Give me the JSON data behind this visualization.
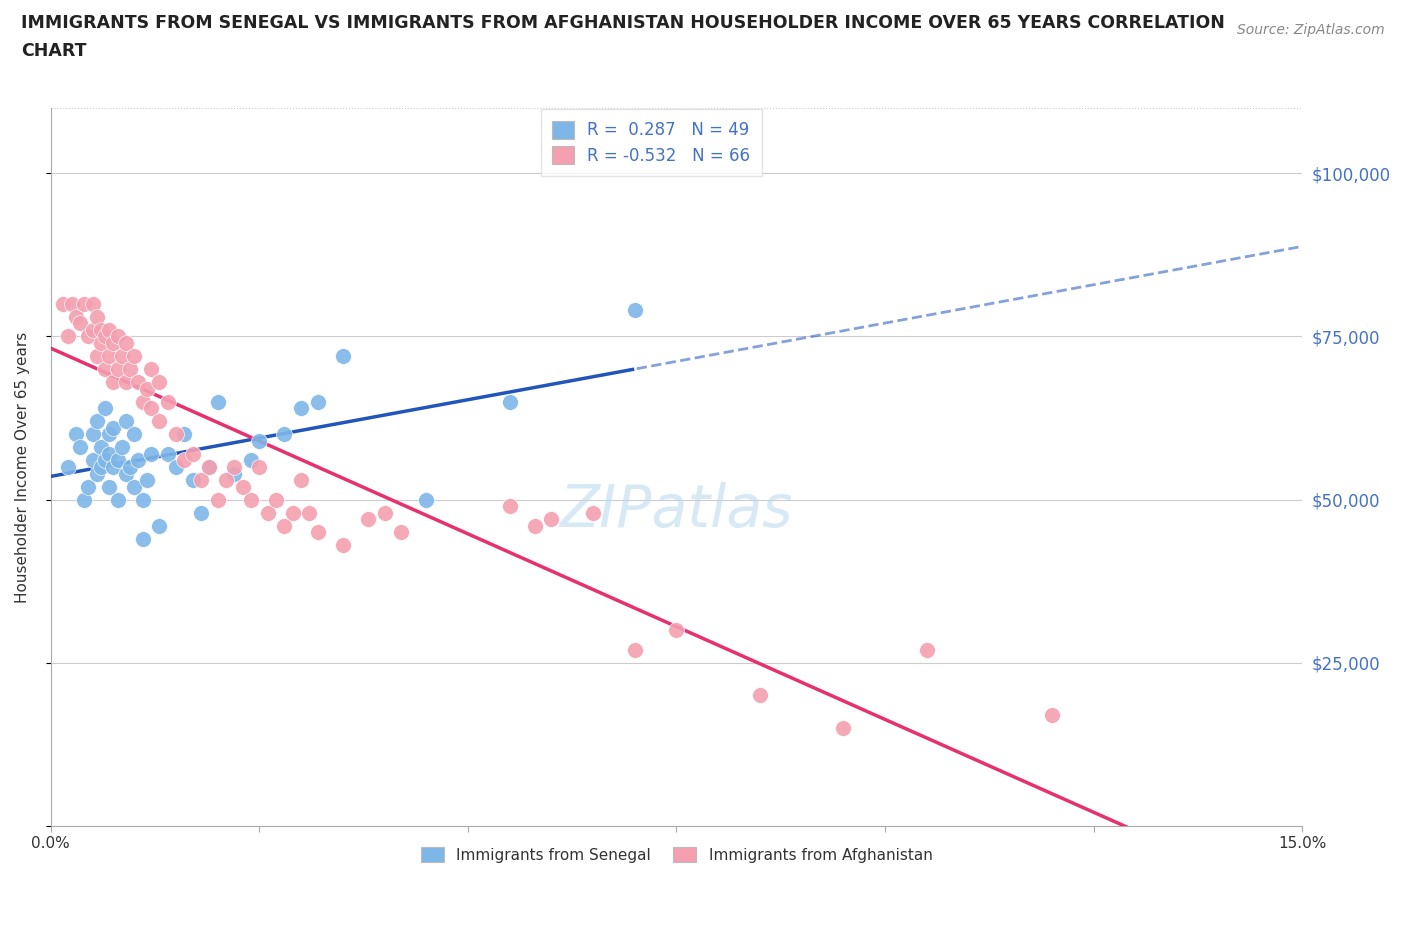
{
  "title_line1": "IMMIGRANTS FROM SENEGAL VS IMMIGRANTS FROM AFGHANISTAN HOUSEHOLDER INCOME OVER 65 YEARS CORRELATION",
  "title_line2": "CHART",
  "source": "Source: ZipAtlas.com",
  "ylabel": "Householder Income Over 65 years",
  "xmin": 0.0,
  "xmax": 15.0,
  "ymin": 0,
  "ymax": 110000,
  "yticks": [
    0,
    25000,
    50000,
    75000,
    100000
  ],
  "ytick_labels": [
    "",
    "$25,000",
    "$50,000",
    "$75,000",
    "$100,000"
  ],
  "xticks": [
    0.0,
    2.5,
    5.0,
    7.5,
    10.0,
    12.5,
    15.0
  ],
  "xtick_labels": [
    "0.0%",
    "",
    "",
    "",
    "",
    "",
    "15.0%"
  ],
  "senegal_R": 0.287,
  "senegal_N": 49,
  "afghanistan_R": -0.532,
  "afghanistan_N": 66,
  "senegal_color": "#7EB6E8",
  "afghanistan_color": "#F4A0B0",
  "senegal_line_color": "#2255BB",
  "afghanistan_line_color": "#E83070",
  "watermark": "ZIPatlas",
  "legend_senegal": "Immigrants from Senegal",
  "legend_afghanistan": "Immigrants from Afghanistan",
  "label_color": "#4472C4",
  "senegal_x": [
    0.2,
    0.3,
    0.35,
    0.4,
    0.45,
    0.5,
    0.5,
    0.55,
    0.55,
    0.6,
    0.6,
    0.65,
    0.65,
    0.7,
    0.7,
    0.7,
    0.75,
    0.75,
    0.8,
    0.8,
    0.85,
    0.9,
    0.9,
    0.95,
    1.0,
    1.0,
    1.05,
    1.1,
    1.1,
    1.15,
    1.2,
    1.3,
    1.4,
    1.5,
    1.6,
    1.7,
    1.8,
    1.9,
    2.0,
    2.2,
    2.4,
    2.5,
    2.8,
    3.0,
    3.2,
    3.5,
    4.5,
    5.5,
    7.0
  ],
  "senegal_y": [
    55000,
    60000,
    58000,
    50000,
    52000,
    56000,
    60000,
    54000,
    62000,
    55000,
    58000,
    56000,
    64000,
    52000,
    57000,
    60000,
    55000,
    61000,
    50000,
    56000,
    58000,
    54000,
    62000,
    55000,
    52000,
    60000,
    56000,
    44000,
    50000,
    53000,
    57000,
    46000,
    57000,
    55000,
    60000,
    53000,
    48000,
    55000,
    65000,
    54000,
    56000,
    59000,
    60000,
    64000,
    65000,
    72000,
    50000,
    65000,
    79000
  ],
  "afghanistan_x": [
    0.15,
    0.2,
    0.25,
    0.3,
    0.35,
    0.4,
    0.45,
    0.5,
    0.5,
    0.55,
    0.55,
    0.6,
    0.6,
    0.65,
    0.65,
    0.7,
    0.7,
    0.75,
    0.75,
    0.8,
    0.8,
    0.85,
    0.9,
    0.9,
    0.95,
    1.0,
    1.05,
    1.1,
    1.15,
    1.2,
    1.2,
    1.3,
    1.3,
    1.4,
    1.5,
    1.6,
    1.7,
    1.8,
    1.9,
    2.0,
    2.1,
    2.2,
    2.3,
    2.4,
    2.5,
    2.6,
    2.7,
    2.8,
    2.9,
    3.0,
    3.1,
    3.2,
    3.5,
    3.8,
    4.0,
    4.2,
    5.5,
    5.8,
    6.0,
    6.5,
    7.0,
    7.5,
    8.5,
    9.5,
    10.5,
    12.0
  ],
  "afghanistan_y": [
    80000,
    75000,
    80000,
    78000,
    77000,
    80000,
    75000,
    76000,
    80000,
    72000,
    78000,
    74000,
    76000,
    70000,
    75000,
    72000,
    76000,
    68000,
    74000,
    70000,
    75000,
    72000,
    68000,
    74000,
    70000,
    72000,
    68000,
    65000,
    67000,
    64000,
    70000,
    62000,
    68000,
    65000,
    60000,
    56000,
    57000,
    53000,
    55000,
    50000,
    53000,
    55000,
    52000,
    50000,
    55000,
    48000,
    50000,
    46000,
    48000,
    53000,
    48000,
    45000,
    43000,
    47000,
    48000,
    45000,
    49000,
    46000,
    47000,
    48000,
    27000,
    30000,
    20000,
    15000,
    27000,
    17000
  ]
}
